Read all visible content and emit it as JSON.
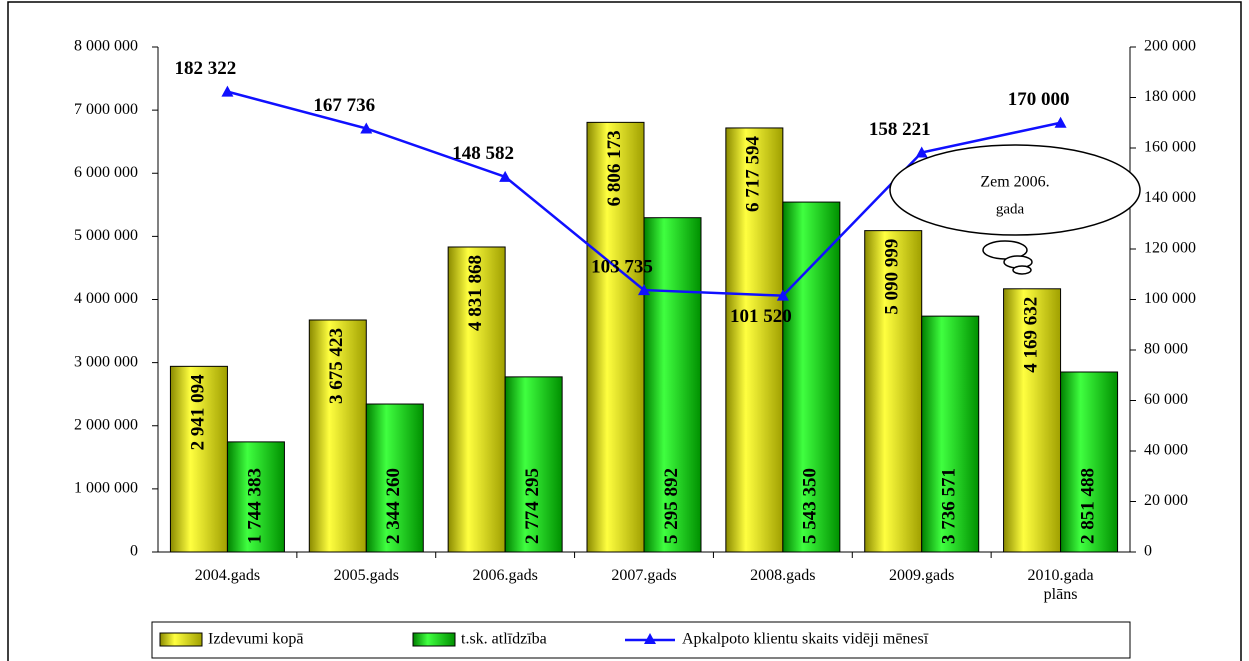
{
  "chart_data": {
    "type": "bar_line",
    "categories": [
      "2004.gads",
      "2005.gads",
      "2006.gads",
      "2007.gads",
      "2008.gads",
      "2009.gads",
      "2010.gada plāns"
    ],
    "series": [
      {
        "name": "Izdevumi kopā",
        "color": "#e0e000",
        "type": "bar",
        "values": [
          2941094,
          3675423,
          4831868,
          6806173,
          6717594,
          5090999,
          4169632
        ],
        "value_labels": [
          "2 941 094",
          "3 675 423",
          "4 831 868",
          "6 806 173",
          "6 717 594",
          "5 090 999",
          "4 169 632"
        ]
      },
      {
        "name": "t.sk. atlīdzība",
        "color": "#00c000",
        "type": "bar",
        "values": [
          1744383,
          2344260,
          2774295,
          5295892,
          5543350,
          3736571,
          2851488
        ],
        "value_labels": [
          "1 744 383",
          "2 344 260",
          "2 774 295",
          "5 295 892",
          "5 543 350",
          "3 736 571",
          "2 851 488"
        ]
      },
      {
        "name": "Apkalpoto klientu skaits vidēji mēnesī",
        "color": "#1010ff",
        "type": "line",
        "axis": "y2",
        "values": [
          182322,
          167736,
          148582,
          103735,
          101520,
          158221,
          170000
        ],
        "value_labels": [
          "182 322",
          "167 736",
          "148 582",
          "103 735",
          "101 520",
          "158 221",
          "170 000"
        ]
      }
    ],
    "ylim": [
      0,
      8000000
    ],
    "yticks": [
      0,
      {
        "value": 1000000,
        "label": "1 000 000"
      },
      {
        "value": 2000000,
        "label": "2 000 000"
      },
      {
        "value": 3000000,
        "label": "3 000 000"
      },
      {
        "value": 4000000,
        "label": "4 000 000"
      },
      {
        "value": 5000000,
        "label": "5 000 000"
      },
      {
        "value": 6000000,
        "label": "6 000 000"
      },
      {
        "value": 7000000,
        "label": "7 000 000"
      },
      {
        "value": 8000000,
        "label": "8 000 000"
      }
    ],
    "y2lim": [
      0,
      200000
    ],
    "y2ticks": [
      0,
      {
        "value": 20000,
        "label": "20 000"
      },
      {
        "value": 40000,
        "label": "40 000"
      },
      {
        "value": 60000,
        "label": "60 000"
      },
      {
        "value": 80000,
        "label": "80 000"
      },
      {
        "value": 100000,
        "label": "100 000"
      },
      {
        "value": 120000,
        "label": "120 000"
      },
      {
        "value": 140000,
        "label": "140 000"
      },
      {
        "value": 160000,
        "label": "160 000"
      },
      {
        "value": 180000,
        "label": "180 000"
      },
      {
        "value": 200000,
        "label": "200 000"
      }
    ],
    "annotation": [
      "Zem 2006.",
      "gada"
    ]
  }
}
